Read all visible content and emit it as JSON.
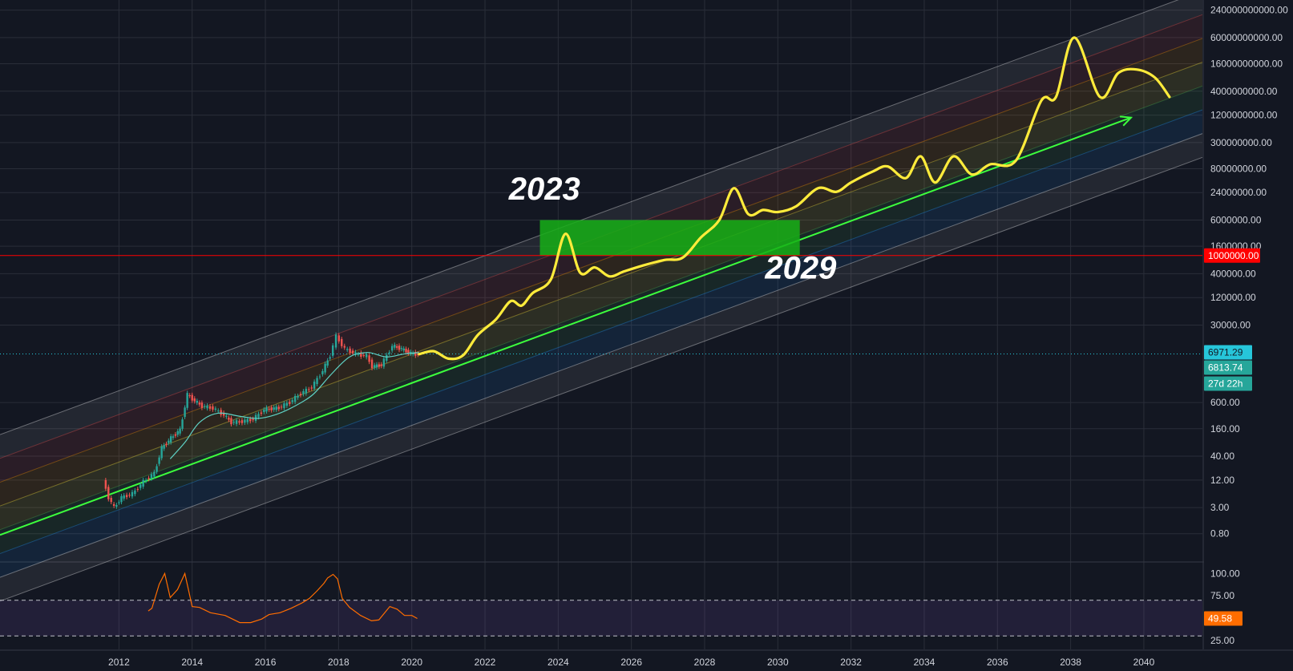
{
  "chart_data": [
    {
      "type": "line",
      "scale": "log",
      "y_axis_labels": [
        "240000000000.00",
        "60000000000.00",
        "16000000000.00",
        "4000000000.00",
        "1200000000.00",
        "300000000.00",
        "80000000.00",
        "24000000.00",
        "6000000.00",
        "1600000.00",
        "400000.00",
        "120000.00",
        "30000.00",
        "600.00",
        "160.00",
        "40.00",
        "12.00",
        "3.00",
        "0.80"
      ],
      "y_axis_values": [
        240000000000,
        60000000000,
        16000000000,
        4000000000,
        1200000000,
        300000000,
        80000000,
        24000000,
        6000000,
        1600000,
        400000,
        120000,
        30000,
        600,
        160,
        40,
        12,
        3,
        0.8
      ],
      "ylim": [
        0.2,
        400000000000
      ],
      "x_axis_labels": [
        "2012",
        "2014",
        "2016",
        "2018",
        "2020",
        "2022",
        "2024",
        "2026",
        "2028",
        "2030",
        "2032",
        "2034",
        "2036",
        "2038",
        "2040"
      ],
      "xlim": [
        2008.75,
        2041.6
      ],
      "price_tags": {
        "horizontal_line": {
          "value": 1000000,
          "label": "1000000.00",
          "color": "#ff0000"
        },
        "last_price": {
          "value": 6971.29,
          "label": "6971.29",
          "color": "#26c6da"
        },
        "close": {
          "value": 6813.74,
          "label": "6813.74",
          "color": "#26a69a"
        },
        "countdown": {
          "label": "27d 22h",
          "color": "#26a69a"
        }
      },
      "regression_channel": {
        "mid": [
          [
            2008.75,
            0.75
          ],
          [
            2041.6,
            4000000000
          ]
        ],
        "upper_offset_log10": 2.2,
        "lower_offset_log10": -1.45,
        "band_colors": [
          "#ffffff",
          "#ef5350",
          "#ff9800",
          "#ffeb3b",
          "#4caf50",
          "#2196f3",
          "#ffffff"
        ]
      },
      "highlight_zone": {
        "x": [
          2023.5,
          2030.6
        ],
        "y": [
          1000000,
          6000000
        ],
        "color": "#16b016"
      },
      "annotations": [
        {
          "text": "2023",
          "x": 2022.65,
          "y": 17000000
        },
        {
          "text": "2029",
          "x": 2029.65,
          "y": 310000
        }
      ],
      "series": [
        {
          "kind": "historical",
          "points": [
            [
              2011.6,
              12
            ],
            [
              2011.75,
              5
            ],
            [
              2011.9,
              3
            ],
            [
              2012.1,
              5
            ],
            [
              2012.4,
              6
            ],
            [
              2012.7,
              11
            ],
            [
              2013.0,
              17
            ],
            [
              2013.2,
              60
            ],
            [
              2013.45,
              100
            ],
            [
              2013.7,
              150
            ],
            [
              2013.9,
              900
            ],
            [
              2014.1,
              650
            ],
            [
              2014.3,
              500
            ],
            [
              2014.6,
              450
            ],
            [
              2014.9,
              320
            ],
            [
              2015.1,
              220
            ],
            [
              2015.4,
              230
            ],
            [
              2015.7,
              260
            ],
            [
              2016.0,
              420
            ],
            [
              2016.4,
              460
            ],
            [
              2016.7,
              610
            ],
            [
              2017.0,
              950
            ],
            [
              2017.3,
              1300
            ],
            [
              2017.6,
              3000
            ],
            [
              2017.8,
              6500
            ],
            [
              2017.97,
              17000
            ],
            [
              2018.2,
              9000
            ],
            [
              2018.5,
              7000
            ],
            [
              2018.8,
              6300
            ],
            [
              2018.95,
              3700
            ],
            [
              2019.2,
              4000
            ],
            [
              2019.5,
              10500
            ],
            [
              2019.75,
              9000
            ],
            [
              2020.0,
              7200
            ],
            [
              2020.2,
              6813.74
            ]
          ]
        },
        {
          "kind": "moving_average",
          "points": [
            [
              2013.4,
              35
            ],
            [
              2013.8,
              80
            ],
            [
              2014.2,
              220
            ],
            [
              2014.7,
              350
            ],
            [
              2015.3,
              300
            ],
            [
              2015.8,
              270
            ],
            [
              2016.3,
              330
            ],
            [
              2016.8,
              500
            ],
            [
              2017.3,
              900
            ],
            [
              2017.8,
              2500
            ],
            [
              2018.3,
              6000
            ],
            [
              2018.8,
              7500
            ],
            [
              2019.3,
              6000
            ],
            [
              2019.8,
              7000
            ],
            [
              2020.2,
              7500
            ]
          ]
        },
        {
          "kind": "projection",
          "color": "#ffeb3b",
          "points": [
            [
              2020.2,
              6900
            ],
            [
              2020.6,
              8000
            ],
            [
              2021.0,
              5500
            ],
            [
              2021.4,
              6500
            ],
            [
              2021.8,
              18000
            ],
            [
              2022.3,
              40000
            ],
            [
              2022.7,
              100000
            ],
            [
              2023.0,
              80000
            ],
            [
              2023.3,
              150000
            ],
            [
              2023.8,
              300000
            ],
            [
              2024.2,
              3000000
            ],
            [
              2024.6,
              420000
            ],
            [
              2025.0,
              550000
            ],
            [
              2025.4,
              350000
            ],
            [
              2025.8,
              450000
            ],
            [
              2026.3,
              600000
            ],
            [
              2026.9,
              800000
            ],
            [
              2027.4,
              900000
            ],
            [
              2027.9,
              2500000
            ],
            [
              2028.4,
              6000000
            ],
            [
              2028.8,
              30000000
            ],
            [
              2029.2,
              8000000
            ],
            [
              2029.6,
              10000000
            ],
            [
              2030.0,
              9000000
            ],
            [
              2030.5,
              12000000
            ],
            [
              2031.1,
              30000000
            ],
            [
              2031.6,
              25000000
            ],
            [
              2032.0,
              40000000
            ],
            [
              2032.6,
              70000000
            ],
            [
              2033.0,
              90000000
            ],
            [
              2033.5,
              50000000
            ],
            [
              2033.9,
              150000000
            ],
            [
              2034.3,
              40000000
            ],
            [
              2034.8,
              150000000
            ],
            [
              2035.3,
              60000000
            ],
            [
              2035.8,
              100000000
            ],
            [
              2036.5,
              120000000
            ],
            [
              2037.2,
              2500000000
            ],
            [
              2037.6,
              3000000000
            ],
            [
              2038.1,
              60000000000
            ],
            [
              2038.8,
              3000000000
            ],
            [
              2039.3,
              10000000000
            ],
            [
              2039.8,
              12000000000
            ],
            [
              2040.3,
              8000000000
            ],
            [
              2040.7,
              3000000000
            ]
          ]
        }
      ]
    },
    {
      "type": "line",
      "y_axis_labels": [
        "100.00",
        "75.00",
        "25.00"
      ],
      "y_axis_values": [
        100,
        75,
        25
      ],
      "ylim": [
        15,
        112
      ],
      "levels": {
        "upper": 70,
        "lower": 30
      },
      "value_tag": {
        "value": 49.58,
        "label": "49.58",
        "color": "#ff6d00"
      },
      "series": [
        {
          "color": "#ff6d00",
          "points": [
            [
              2012.8,
              58
            ],
            [
              2012.9,
              61
            ],
            [
              2013.1,
              88
            ],
            [
              2013.25,
              100
            ],
            [
              2013.4,
              73
            ],
            [
              2013.6,
              82
            ],
            [
              2013.8,
              100
            ],
            [
              2014.0,
              63
            ],
            [
              2014.2,
              62
            ],
            [
              2014.5,
              56
            ],
            [
              2014.9,
              53
            ],
            [
              2015.3,
              45
            ],
            [
              2015.6,
              45
            ],
            [
              2015.9,
              49
            ],
            [
              2016.1,
              54
            ],
            [
              2016.4,
              56
            ],
            [
              2016.7,
              61
            ],
            [
              2017.0,
              67
            ],
            [
              2017.2,
              72
            ],
            [
              2017.4,
              80
            ],
            [
              2017.6,
              89
            ],
            [
              2017.7,
              95
            ],
            [
              2017.85,
              99
            ],
            [
              2017.97,
              94
            ],
            [
              2018.1,
              72
            ],
            [
              2018.3,
              62
            ],
            [
              2018.6,
              53
            ],
            [
              2018.9,
              47
            ],
            [
              2019.1,
              48
            ],
            [
              2019.4,
              63
            ],
            [
              2019.6,
              60
            ],
            [
              2019.8,
              53
            ],
            [
              2020.0,
              53
            ],
            [
              2020.15,
              49.58
            ]
          ]
        }
      ]
    }
  ]
}
